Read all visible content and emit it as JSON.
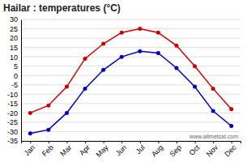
{
  "chart_data": {
    "type": "line",
    "title": "Hailar : temperatures (°C)",
    "categories": [
      "Jan",
      "Feb",
      "Mar",
      "Apr",
      "May",
      "Jun",
      "Jul",
      "Aug",
      "Sep",
      "Oct",
      "Nov",
      "Dec"
    ],
    "series": [
      {
        "color": "#cc0000",
        "values": [
          -20,
          -16,
          -6,
          9,
          17,
          23,
          25,
          23,
          16,
          5,
          -7,
          -18
        ]
      },
      {
        "color": "#0000bb",
        "values": [
          -31,
          -29,
          -20,
          -7,
          3,
          10,
          13,
          12,
          4,
          -6,
          -19,
          -27
        ]
      }
    ],
    "ylim": [
      -35,
      30
    ],
    "yticks": [
      -35,
      -30,
      -25,
      -20,
      -15,
      -10,
      -5,
      0,
      5,
      10,
      15,
      20,
      25,
      30
    ],
    "grid": true,
    "marker": "circle",
    "line_style": "solid",
    "annotations": [
      "www.allmetsat.com"
    ]
  }
}
